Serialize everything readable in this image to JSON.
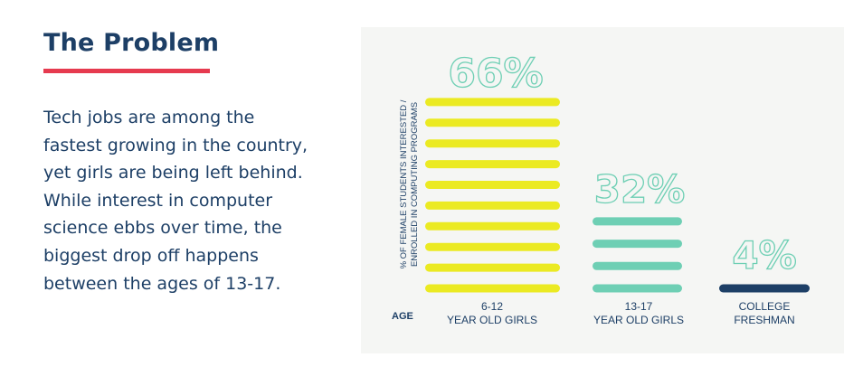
{
  "header": {
    "title": "The Problem"
  },
  "intro": {
    "lines": [
      "Tech jobs are among the",
      "fastest growing in the country,",
      "yet girls are being left behind.",
      "While interest in computer",
      "science ebbs over time, the",
      "biggest drop off happens",
      "between the ages of 13-17."
    ]
  },
  "colors": {
    "title": "#1d3f66",
    "accent": "#e63a4f",
    "panel": "#f5f6f4",
    "yellow": "#ebea22",
    "teal": "#6ecfb4",
    "navy": "#1d3f66"
  },
  "chart_data": {
    "type": "bar",
    "ylabel_lines": [
      "% OF FEMALE STUDENTS INTERESTED /",
      "ENROLLED IN COMPUTING PROGRAMS"
    ],
    "xlabel": "AGE",
    "unit": "%",
    "categories": [
      {
        "id": "g612",
        "line1": "6-12",
        "line2": "YEAR OLD GIRLS"
      },
      {
        "id": "g1317",
        "line1": "13-17",
        "line2": "YEAR OLD GIRLS"
      },
      {
        "id": "college",
        "line1": "COLLEGE",
        "line2": "FRESHMAN"
      }
    ],
    "values": [
      66,
      32,
      4
    ],
    "value_labels": [
      "66%",
      "32%",
      "4%"
    ],
    "bar_colors": [
      "#ebea22",
      "#6ecfb4",
      "#1d3f66"
    ],
    "ylim": [
      0,
      66
    ]
  }
}
